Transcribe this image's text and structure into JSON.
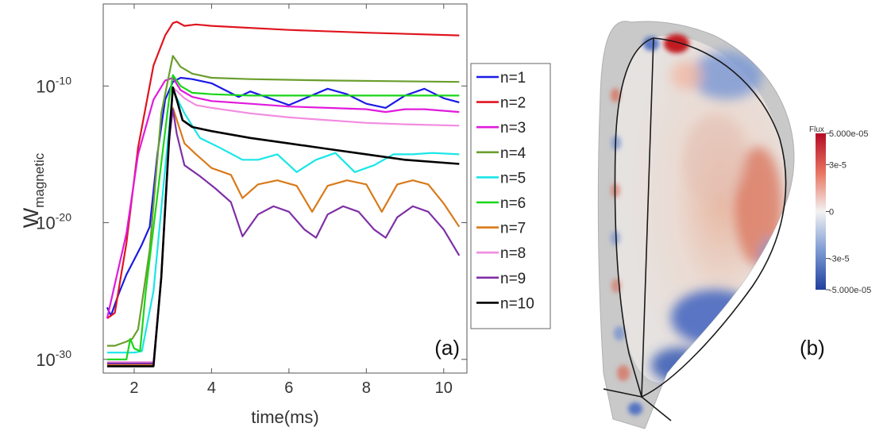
{
  "chart_data": [
    {
      "panel_label": "(a)",
      "type": "line",
      "xlabel": "time(ms)",
      "ylabel_main": "W",
      "ylabel_sub": "magnetic",
      "y_scale": "log",
      "xlim": [
        1.2,
        10.6
      ],
      "ylim_exponent": [
        -31,
        -4
      ],
      "x_ticks": [
        "2",
        "4",
        "6",
        "8",
        "10"
      ],
      "y_ticks": [
        {
          "base": "10",
          "exp": "-10",
          "value_exp": -10
        },
        {
          "base": "10",
          "exp": "-20",
          "value_exp": -20
        },
        {
          "base": "10",
          "exp": "-30",
          "value_exp": -30
        }
      ],
      "legend_position": "right-outside",
      "series": [
        {
          "name": "n=1",
          "color": "#1a1ae6",
          "x": [
            1.3,
            1.4,
            1.6,
            1.8,
            2.0,
            2.2,
            2.4,
            2.6,
            2.8,
            3.0,
            3.2,
            3.5,
            4.0,
            4.7,
            5.0,
            5.5,
            6.0,
            6.5,
            7.0,
            7.5,
            8.0,
            8.5,
            9.0,
            9.5,
            10.0,
            10.4
          ],
          "y_exp": [
            -26.2,
            -26.8,
            -25.2,
            -23.8,
            -22.7,
            -21.6,
            -20.3,
            -15.0,
            -11.0,
            -9.7,
            -9.4,
            -9.5,
            -9.8,
            -10.8,
            -10.4,
            -10.9,
            -11.4,
            -10.8,
            -10.2,
            -10.6,
            -11.3,
            -11.6,
            -10.7,
            -10.2,
            -10.9,
            -11.2
          ]
        },
        {
          "name": "n=2",
          "color": "#e0141e",
          "x": [
            1.3,
            1.5,
            1.8,
            2.1,
            2.5,
            2.8,
            3.0,
            3.1,
            3.3,
            3.6,
            4.0,
            6.0,
            8.0,
            10.4
          ],
          "y_exp": [
            -27.0,
            -26.6,
            -21.5,
            -14.5,
            -8.5,
            -6.3,
            -5.4,
            -5.3,
            -5.6,
            -5.5,
            -5.6,
            -5.9,
            -6.1,
            -6.3
          ]
        },
        {
          "name": "n=3",
          "color": "#e01adc",
          "x": [
            1.3,
            1.5,
            1.8,
            2.1,
            2.5,
            2.8,
            3.0,
            3.2,
            3.5,
            4.0,
            5.0,
            6.0,
            7.0,
            8.0,
            8.5,
            9.0,
            9.5,
            10.4
          ],
          "y_exp": [
            -27.0,
            -24.5,
            -20.8,
            -15.0,
            -11.0,
            -9.6,
            -9.4,
            -10.3,
            -10.8,
            -11.1,
            -11.3,
            -11.5,
            -11.6,
            -11.7,
            -11.9,
            -11.7,
            -11.7,
            -11.9
          ]
        },
        {
          "name": "n=4",
          "color": "#6a9e2c",
          "x": [
            1.3,
            1.5,
            1.8,
            1.95,
            2.1,
            2.4,
            2.7,
            3.0,
            3.2,
            3.5,
            4.0,
            5.0,
            7.0,
            10.4
          ],
          "y_exp": [
            -29.0,
            -29.0,
            -28.7,
            -28.5,
            -27.8,
            -22.0,
            -12.0,
            -7.8,
            -8.6,
            -9.1,
            -9.4,
            -9.5,
            -9.6,
            -9.7
          ]
        },
        {
          "name": "n=5",
          "color": "#19e6e6",
          "x": [
            1.3,
            1.55,
            1.8,
            2.0,
            2.2,
            2.5,
            2.8,
            3.0,
            3.3,
            3.7,
            4.2,
            4.8,
            5.2,
            5.7,
            6.2,
            6.7,
            7.2,
            7.7,
            8.2,
            8.7,
            9.2,
            9.7,
            10.4
          ],
          "y_exp": [
            -29.5,
            -29.5,
            -29.5,
            -29.5,
            -29.4,
            -25.0,
            -16.0,
            -10.3,
            -12.0,
            -13.8,
            -14.5,
            -15.4,
            -15.4,
            -15.0,
            -16.3,
            -15.4,
            -14.9,
            -16.3,
            -15.8,
            -15.0,
            -15.0,
            -14.9,
            -15.0
          ]
        },
        {
          "name": "n=6",
          "color": "#19d619",
          "x": [
            1.3,
            1.6,
            1.8,
            1.9,
            2.0,
            2.15,
            2.3,
            2.6,
            2.9,
            3.0,
            3.2,
            3.5,
            4.0,
            5.0,
            7.0,
            10.4
          ],
          "y_exp": [
            -30.0,
            -30.0,
            -30.0,
            -28.5,
            -29.2,
            -29.4,
            -25.0,
            -18.0,
            -11.0,
            -9.2,
            -10.0,
            -10.5,
            -10.6,
            -10.7,
            -10.7,
            -10.7
          ]
        },
        {
          "name": "n=7",
          "color": "#d97a19",
          "x": [
            1.3,
            2.0,
            2.5,
            2.7,
            2.9,
            3.0,
            3.3,
            3.6,
            4.0,
            4.5,
            4.8,
            5.2,
            5.7,
            6.2,
            6.6,
            7.0,
            7.5,
            8.0,
            8.4,
            8.8,
            9.2,
            9.6,
            10.0,
            10.4
          ],
          "y_exp": [
            -30.4,
            -30.4,
            -30.4,
            -24.0,
            -14.0,
            -11.6,
            -14.2,
            -15.0,
            -16.0,
            -16.5,
            -18.2,
            -17.2,
            -16.9,
            -17.3,
            -19.2,
            -17.3,
            -16.9,
            -17.2,
            -19.2,
            -17.2,
            -16.9,
            -17.2,
            -18.6,
            -20.3
          ]
        },
        {
          "name": "n=8",
          "color": "#f28ce0",
          "x": [
            1.3,
            2.0,
            2.5,
            2.7,
            2.9,
            3.0,
            3.3,
            3.6,
            4.0,
            5.0,
            6.0,
            7.0,
            8.0,
            9.0,
            10.4
          ],
          "y_exp": [
            -30.2,
            -30.2,
            -30.2,
            -24.0,
            -14.5,
            -10.1,
            -10.9,
            -11.4,
            -11.6,
            -12.0,
            -12.3,
            -12.5,
            -12.7,
            -12.8,
            -12.9
          ]
        },
        {
          "name": "n=9",
          "color": "#7f2fa6",
          "x": [
            1.3,
            2.0,
            2.5,
            2.7,
            2.9,
            3.0,
            3.1,
            3.3,
            3.7,
            4.1,
            4.5,
            4.8,
            5.2,
            5.6,
            6.0,
            6.4,
            6.7,
            7.0,
            7.4,
            7.8,
            8.2,
            8.5,
            8.8,
            9.2,
            9.6,
            10.0,
            10.4
          ],
          "y_exp": [
            -30.3,
            -30.3,
            -30.3,
            -24.0,
            -14.0,
            -11.7,
            -13.5,
            -15.8,
            -16.6,
            -17.5,
            -18.5,
            -21.0,
            -19.4,
            -18.8,
            -19.2,
            -20.5,
            -21.1,
            -19.4,
            -18.8,
            -19.2,
            -20.5,
            -21.1,
            -19.6,
            -18.8,
            -19.2,
            -20.5,
            -22.4
          ]
        },
        {
          "name": "n=10",
          "color": "#000000",
          "x": [
            1.3,
            2.0,
            2.5,
            2.7,
            2.9,
            3.0,
            3.1,
            3.25,
            3.5,
            4.0,
            5.0,
            6.0,
            7.0,
            8.0,
            9.0,
            10.4
          ],
          "y_exp": [
            -30.5,
            -30.5,
            -30.5,
            -24.0,
            -14.0,
            -10.1,
            -11.0,
            -12.5,
            -13.0,
            -13.3,
            -13.8,
            -14.2,
            -14.6,
            -15.0,
            -15.4,
            -15.7
          ]
        }
      ]
    },
    {
      "panel_label": "(b)",
      "type": "heatmap",
      "colorbar_title": "Flux",
      "colorbar_ticks": [
        "5.000e-05",
        "3e-5",
        "0",
        "-3e-5",
        "-5.000e-05"
      ],
      "colorbar_values": [
        5e-05,
        3e-05,
        0,
        -3e-05,
        -5e-05
      ],
      "colors": {
        "positive": "#c8102e",
        "zero": "#efefef",
        "negative": "#1f4fb4"
      }
    }
  ]
}
